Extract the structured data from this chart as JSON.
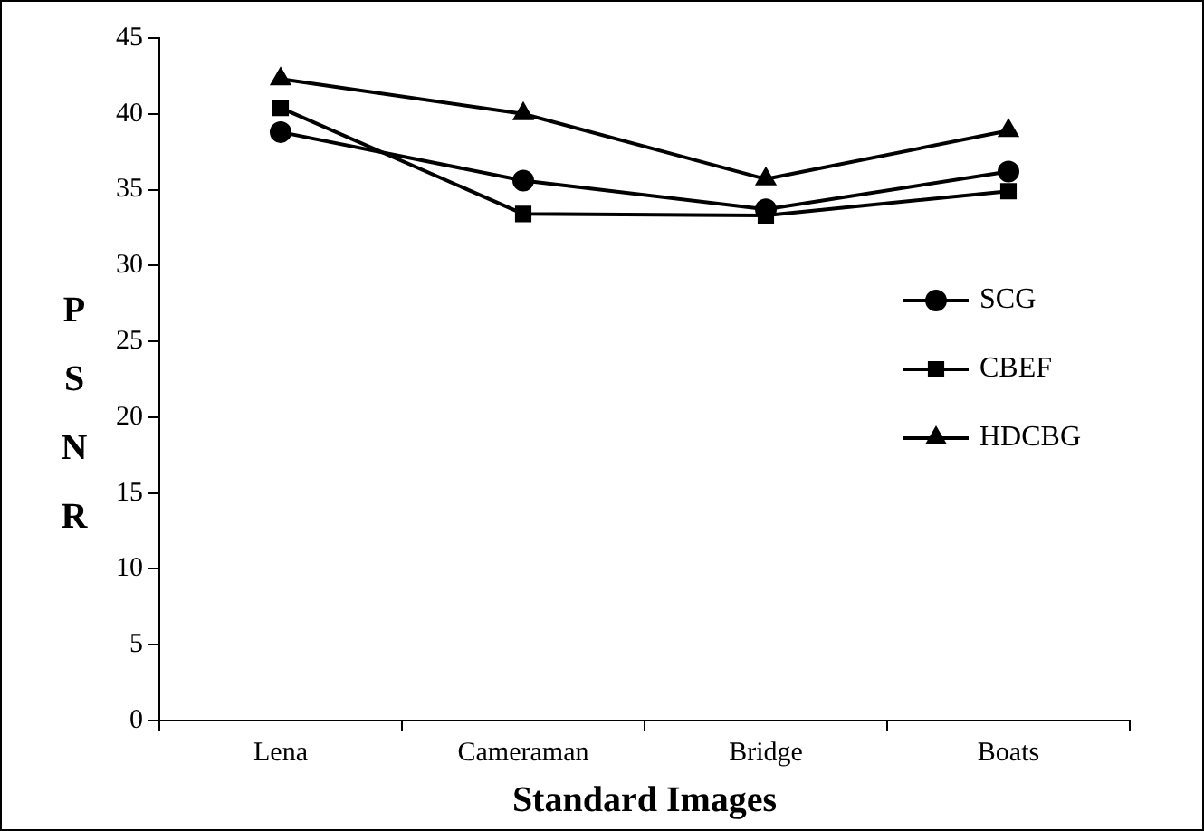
{
  "chart_data": {
    "type": "line",
    "xlabel": "Standard Images",
    "ylabel": "PSNR",
    "categories": [
      "Lena",
      "Cameraman",
      "Bridge",
      "Boats"
    ],
    "series": [
      {
        "name": "SCG",
        "color": "#000000",
        "marker": "circle",
        "values": [
          38.8,
          35.6,
          33.7,
          36.2
        ]
      },
      {
        "name": "CBEF",
        "color": "#000000",
        "marker": "square",
        "values": [
          40.4,
          33.4,
          33.3,
          34.9
        ]
      },
      {
        "name": "HDCBG",
        "color": "#000000",
        "marker": "triangle",
        "values": [
          42.3,
          40.0,
          35.7,
          38.9
        ]
      }
    ],
    "ylim": [
      0,
      45
    ],
    "yticks": [
      0,
      5,
      10,
      15,
      20,
      25,
      30,
      35,
      40,
      45
    ],
    "grid": false,
    "legend": "right",
    "line_style": "solid"
  }
}
